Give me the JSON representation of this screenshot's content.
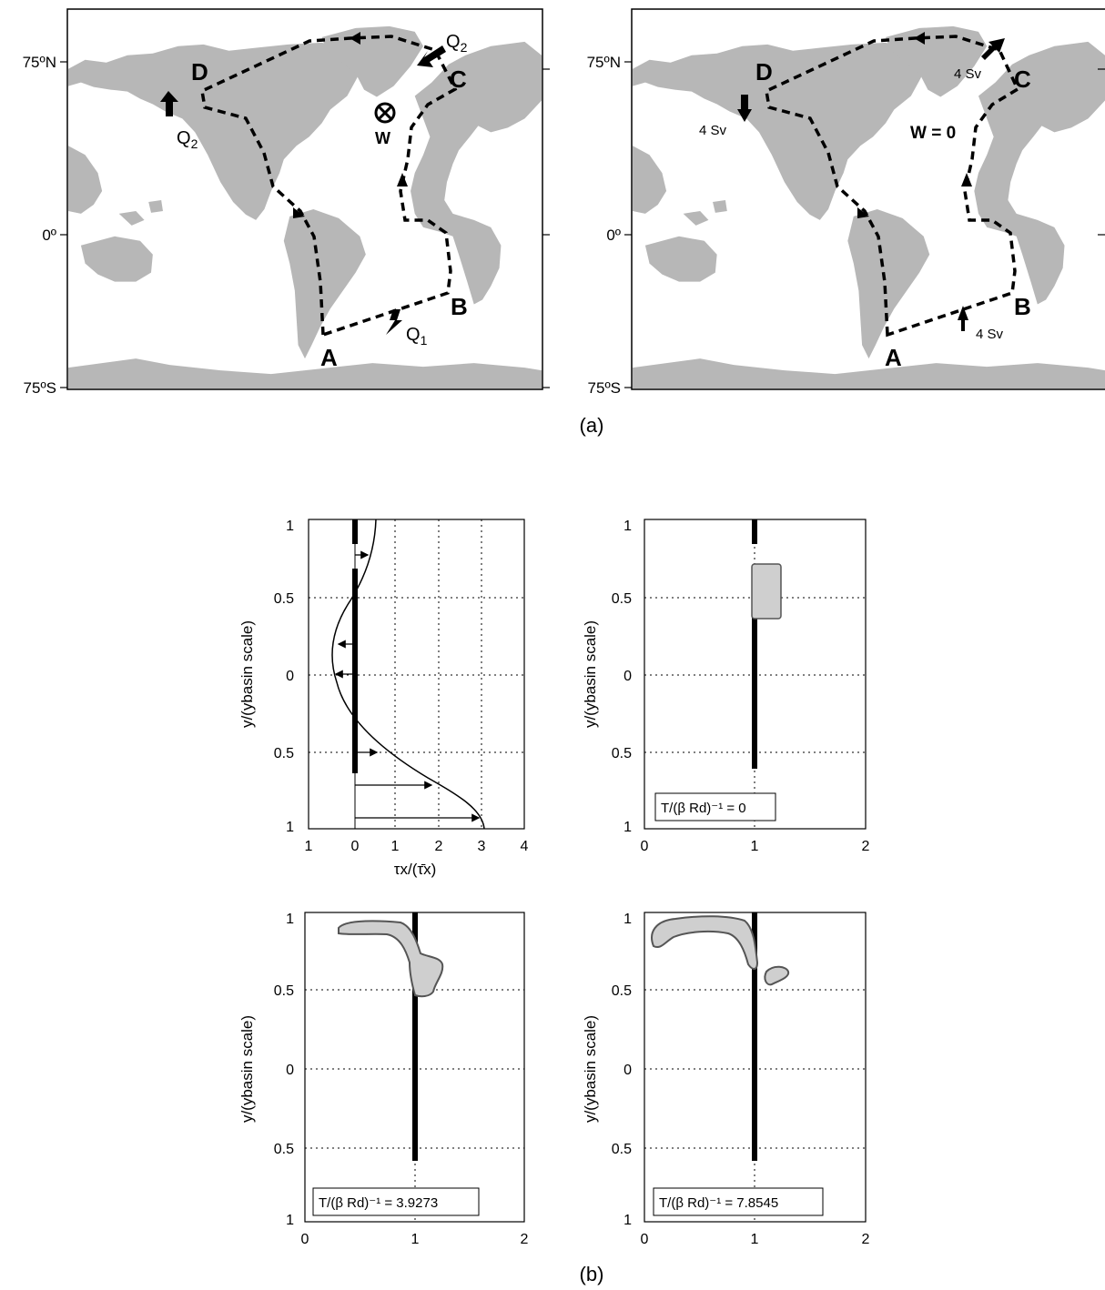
{
  "panel_a": {
    "caption": "(a)",
    "lat_labels": [
      "75ºN",
      "0º",
      "75ºS"
    ],
    "left_map": {
      "points": [
        "A",
        "B",
        "C",
        "D"
      ],
      "flux_labels": {
        "q1": "Q",
        "q1_sub": "1",
        "q2_top": "Q",
        "q2_top_sub": "2",
        "q2_left": "Q",
        "q2_left_sub": "2"
      },
      "w_label": "W"
    },
    "right_map": {
      "points": [
        "A",
        "B",
        "C",
        "D"
      ],
      "flux_labels": {
        "south": "4 Sv",
        "north": "4 Sv",
        "west": "4 Sv"
      },
      "w_label": "W = 0"
    }
  },
  "panel_b": {
    "caption": "(b)",
    "ylabel": "y/(ybasin scale)",
    "y_ticks": [
      "1",
      "0.5",
      "0",
      "0.5",
      "1"
    ],
    "wind_plot": {
      "x_ticks": [
        "1",
        "0",
        "1",
        "2",
        "3",
        "4"
      ],
      "xlabel": "τx/(τ̄x)"
    },
    "snapshot_x_ticks": [
      "0",
      "1",
      "2"
    ],
    "snapshots": [
      {
        "label": "T/(β Rd)⁻¹ = 0"
      },
      {
        "label": "T/(β Rd)⁻¹ = 3.9273"
      },
      {
        "label": "T/(β Rd)⁻¹ = 7.8545"
      }
    ]
  },
  "colors": {
    "land": "#b7b7b7",
    "ink": "#000000",
    "grid": "#000000"
  }
}
